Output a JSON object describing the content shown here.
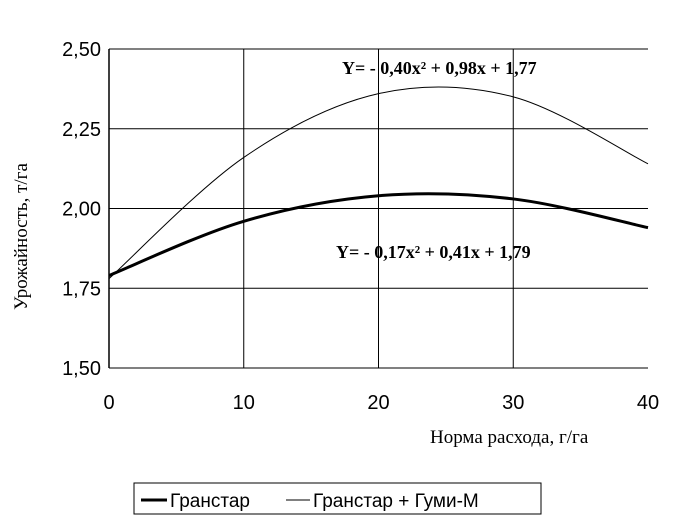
{
  "chart_data": {
    "type": "line",
    "xlabel": "Норма расхода, г/га",
    "ylabel": "Урожайность, т/га",
    "xlim": [
      0,
      40
    ],
    "ylim": [
      1.5,
      2.5
    ],
    "x_ticks": [
      "0",
      "10",
      "20",
      "30",
      "40"
    ],
    "y_ticks": [
      "1,50",
      "1,75",
      "2,00",
      "2,25",
      "2,50"
    ],
    "x": [
      0,
      10,
      20,
      30,
      40
    ],
    "grid": "horizontal at y ticks; vertical at x = 10, 20, 30",
    "series": [
      {
        "name": "Гранстар",
        "style": "thick",
        "color": "#000000",
        "values": [
          1.79,
          1.96,
          2.04,
          2.03,
          1.94
        ]
      },
      {
        "name": "Гранстар + Гуми-М",
        "style": "thin",
        "color": "#000000",
        "values": [
          1.78,
          2.16,
          2.36,
          2.35,
          2.14
        ]
      }
    ],
    "annotations": [
      {
        "text": "Y= - 0,40x² + 0,98x + 1,77",
        "series": "Гранстар + Гуми-М"
      },
      {
        "text": "Y= - 0,17x² + 0,41x + 1,79",
        "series": "Гранстар"
      }
    ],
    "legend_position": "bottom"
  }
}
